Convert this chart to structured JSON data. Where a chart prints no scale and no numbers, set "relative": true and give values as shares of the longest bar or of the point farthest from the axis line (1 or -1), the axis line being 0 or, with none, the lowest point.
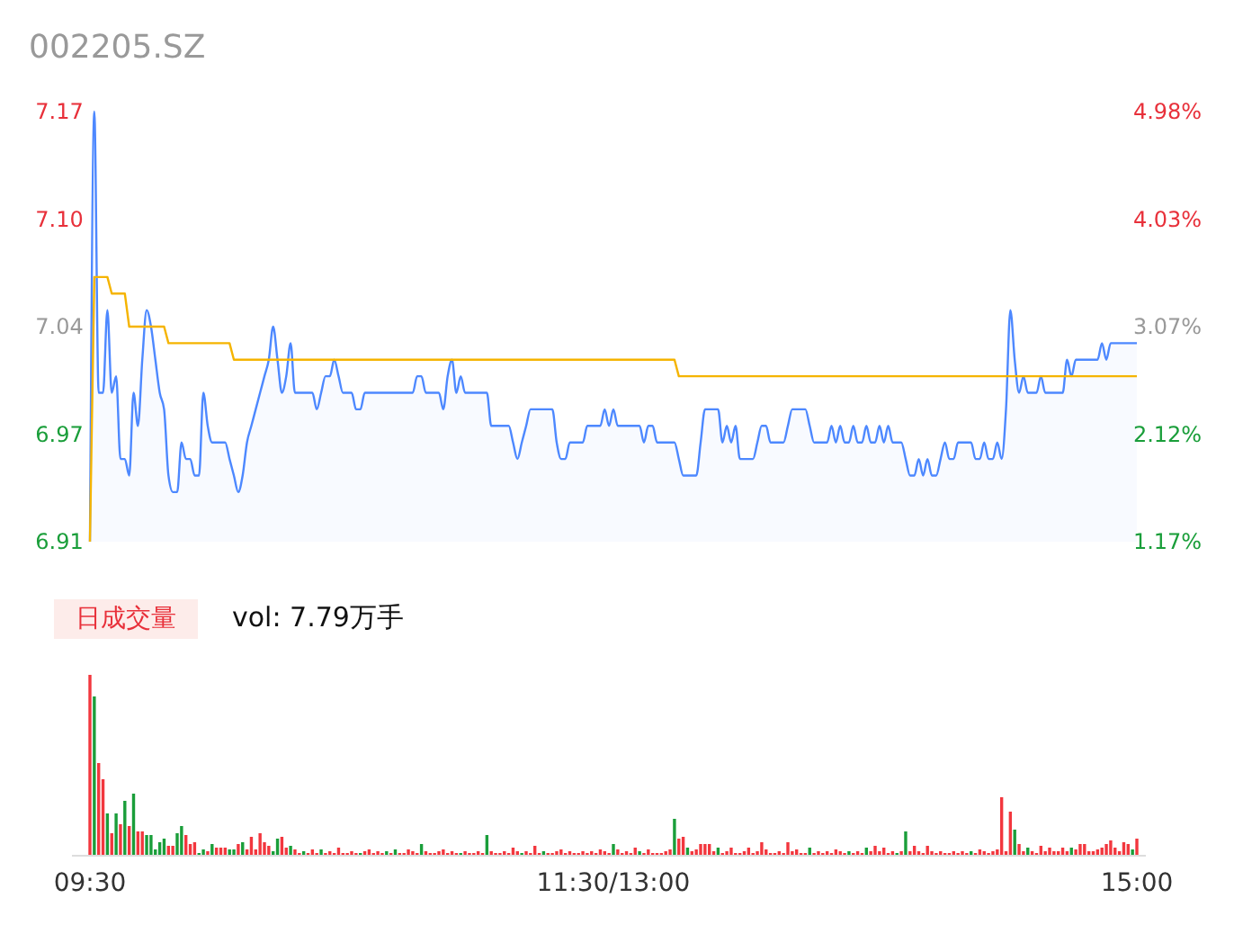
{
  "chart_data": [
    {
      "type": "line",
      "title": "002205.SZ",
      "categories": [
        null,
        null,
        null,
        null,
        null,
        null,
        null,
        null,
        null,
        null,
        null,
        null,
        null,
        null,
        null,
        null,
        null,
        null,
        null,
        null,
        null,
        null,
        null,
        null,
        null,
        null,
        null,
        null,
        null,
        null,
        null,
        null,
        null,
        null,
        null,
        null,
        null,
        null,
        null,
        null,
        null,
        null,
        null,
        null,
        null,
        null,
        null,
        null,
        null,
        null,
        null,
        null,
        null,
        null,
        null,
        null,
        null,
        null,
        null,
        null,
        null,
        null,
        null,
        null,
        null,
        null,
        null,
        null,
        null,
        null,
        null,
        null,
        null,
        null,
        null,
        null,
        null,
        null,
        null,
        null,
        null,
        null,
        null,
        null,
        null,
        null,
        null,
        null,
        null,
        null,
        null,
        null,
        null,
        null,
        null,
        null,
        null,
        null,
        null,
        null,
        null,
        null,
        null,
        null,
        null,
        null,
        null,
        null,
        null,
        null,
        null,
        null,
        null,
        null,
        null,
        null,
        null,
        null,
        null,
        null,
        null,
        null,
        null,
        null,
        null,
        null,
        null,
        null,
        null,
        null,
        null,
        null,
        null,
        null,
        null,
        null,
        null,
        null,
        null,
        null,
        null,
        null,
        null,
        null,
        null,
        null,
        null,
        null,
        null,
        null,
        null,
        null,
        null,
        null,
        null,
        null,
        null,
        null,
        null,
        null,
        null,
        null,
        null,
        null,
        null,
        null,
        null,
        null,
        null,
        null,
        null,
        null,
        null,
        null,
        null,
        null,
        null,
        null,
        null,
        null,
        null,
        null,
        null,
        null,
        null,
        null,
        null,
        null,
        null,
        null,
        null,
        null,
        null,
        null,
        null,
        null,
        null,
        null,
        null,
        null,
        null,
        null,
        null,
        null,
        null,
        null,
        null,
        null,
        null,
        null,
        null,
        null,
        null,
        null,
        null,
        null,
        null,
        null,
        null,
        null,
        null,
        null,
        null,
        null,
        null,
        null,
        null,
        null,
        null,
        null,
        null,
        null,
        null,
        null,
        null,
        null,
        null,
        null,
        null,
        null,
        null
      ],
      "ylim": [
        6.91,
        7.17
      ],
      "yticks": [
        6.91,
        {
          "value": 6.975,
          "label": "6.97"
        },
        7.04,
        {
          "value": 7.105,
          "label": "7.10"
        },
        7.17
      ],
      "y2lim": [
        1.17,
        4.98
      ],
      "y2ticks": [
        {
          "value": 1.17,
          "label": "1.17%"
        },
        {
          "value": 2.1225,
          "label": "2.12%"
        },
        {
          "value": 3.075,
          "label": "3.07%"
        },
        {
          "value": 4.0275,
          "label": "4.03%"
        },
        {
          "value": 4.98,
          "label": "4.98%"
        }
      ],
      "tick_labels": "y",
      "series": [
        {
          "type": "area",
          "color": "#4d88ff",
          "values": [
            6.91,
            7.17,
            7.0,
            7.0,
            7.05,
            7.0,
            7.01,
            6.96,
            6.96,
            6.95,
            7.0,
            6.98,
            7.02,
            7.05,
            7.04,
            7.02,
            7.0,
            6.99,
            6.95,
            6.94,
            6.94,
            6.97,
            6.96,
            6.96,
            6.95,
            6.95,
            7.0,
            6.98,
            6.97,
            6.97,
            6.97,
            6.97,
            6.96,
            6.95,
            6.94,
            6.95,
            6.97,
            6.98,
            6.99,
            7.0,
            7.01,
            7.02,
            7.04,
            7.02,
            7.0,
            7.01,
            7.03,
            7.0,
            7.0,
            7.0,
            7.0,
            7.0,
            6.99,
            7.0,
            7.01,
            7.01,
            7.02,
            7.01,
            7.0,
            7.0,
            7.0,
            6.99,
            6.99,
            7.0,
            7.0,
            7.0,
            7.0,
            7.0,
            7.0,
            7.0,
            7.0,
            7.0,
            7.0,
            7.0,
            7.0,
            7.01,
            7.01,
            7.0,
            7.0,
            7.0,
            7.0,
            6.99,
            7.01,
            7.02,
            7.0,
            7.01,
            7.0,
            7.0,
            7.0,
            7.0,
            7.0,
            7.0,
            6.98,
            6.98,
            6.98,
            6.98,
            6.98,
            6.97,
            6.96,
            6.97,
            6.98,
            6.99,
            6.99,
            6.99,
            6.99,
            6.99,
            6.99,
            6.97,
            6.96,
            6.96,
            6.97,
            6.97,
            6.97,
            6.97,
            6.98,
            6.98,
            6.98,
            6.98,
            6.99,
            6.98,
            6.99,
            6.98,
            6.98,
            6.98,
            6.98,
            6.98,
            6.98,
            6.97,
            6.98,
            6.98,
            6.97,
            6.97,
            6.97,
            6.97,
            6.97,
            6.96,
            6.95,
            6.95,
            6.95,
            6.95,
            6.97,
            6.99,
            6.99,
            6.99,
            6.99,
            6.97,
            6.98,
            6.97,
            6.98,
            6.96,
            6.96,
            6.96,
            6.96,
            6.97,
            6.98,
            6.98,
            6.97,
            6.97,
            6.97,
            6.97,
            6.98,
            6.99,
            6.99,
            6.99,
            6.99,
            6.98,
            6.97,
            6.97,
            6.97,
            6.97,
            6.98,
            6.97,
            6.98,
            6.97,
            6.97,
            6.98,
            6.97,
            6.97,
            6.98,
            6.97,
            6.97,
            6.98,
            6.97,
            6.98,
            6.97,
            6.97,
            6.97,
            6.96,
            6.95,
            6.95,
            6.96,
            6.95,
            6.96,
            6.95,
            6.95,
            6.96,
            6.97,
            6.96,
            6.96,
            6.97,
            6.97,
            6.97,
            6.97,
            6.96,
            6.96,
            6.97,
            6.96,
            6.96,
            6.97,
            6.96,
            6.99,
            7.05,
            7.02,
            7.0,
            7.01,
            7.0,
            7.0,
            7.0,
            7.01,
            7.0,
            7.0,
            7.0,
            7.0,
            7.0,
            7.02,
            7.01,
            7.02,
            7.02,
            7.02,
            7.02,
            7.02,
            7.02,
            7.03,
            7.02,
            7.03,
            7.03,
            7.03,
            7.03,
            7.03,
            7.03,
            7.03
          ]
        },
        {
          "type": "line",
          "color": "#f5b400",
          "values": [
            6.91,
            7.07,
            7.07,
            7.07,
            7.07,
            7.06,
            7.06,
            7.06,
            7.06,
            7.04,
            7.04,
            7.04,
            7.04,
            7.04,
            7.04,
            7.04,
            7.04,
            7.04,
            7.03,
            7.03,
            7.03,
            7.03,
            7.03,
            7.03,
            7.03,
            7.03,
            7.03,
            7.03,
            7.03,
            7.03,
            7.03,
            7.03,
            7.03,
            7.02,
            7.02,
            7.02,
            7.02,
            7.02,
            7.02,
            7.02,
            7.02,
            7.02,
            7.02,
            7.02,
            7.02,
            7.02,
            7.02,
            7.02,
            7.02,
            7.02,
            7.02,
            7.02,
            7.02,
            7.02,
            7.02,
            7.02,
            7.02,
            7.02,
            7.02,
            7.02,
            7.02,
            7.02,
            7.02,
            7.02,
            7.02,
            7.02,
            7.02,
            7.02,
            7.02,
            7.02,
            7.02,
            7.02,
            7.02,
            7.02,
            7.02,
            7.02,
            7.02,
            7.02,
            7.02,
            7.02,
            7.02,
            7.02,
            7.02,
            7.02,
            7.02,
            7.02,
            7.02,
            7.02,
            7.02,
            7.02,
            7.02,
            7.02,
            7.02,
            7.02,
            7.02,
            7.02,
            7.02,
            7.02,
            7.02,
            7.02,
            7.02,
            7.02,
            7.02,
            7.02,
            7.02,
            7.02,
            7.02,
            7.02,
            7.02,
            7.02,
            7.02,
            7.02,
            7.02,
            7.02,
            7.02,
            7.02,
            7.02,
            7.02,
            7.02,
            7.02,
            7.02,
            7.02,
            7.02,
            7.02,
            7.02,
            7.02,
            7.02,
            7.02,
            7.02,
            7.02,
            7.02,
            7.02,
            7.02,
            7.02,
            7.02,
            7.01,
            7.01,
            7.01,
            7.01,
            7.01,
            7.01,
            7.01,
            7.01,
            7.01,
            7.01,
            7.01,
            7.01,
            7.01,
            7.01,
            7.01,
            7.01,
            7.01,
            7.01,
            7.01,
            7.01,
            7.01,
            7.01,
            7.01,
            7.01,
            7.01,
            7.01,
            7.01,
            7.01,
            7.01,
            7.01,
            7.01,
            7.01,
            7.01,
            7.01,
            7.01,
            7.01,
            7.01,
            7.01,
            7.01,
            7.01,
            7.01,
            7.01,
            7.01,
            7.01,
            7.01,
            7.01,
            7.01,
            7.01,
            7.01,
            7.01,
            7.01,
            7.01,
            7.01,
            7.01,
            7.01,
            7.01,
            7.01,
            7.01,
            7.01,
            7.01,
            7.01,
            7.01,
            7.01,
            7.01,
            7.01,
            7.01,
            7.01,
            7.01,
            7.01,
            7.01,
            7.01,
            7.01,
            7.01,
            7.01,
            7.01,
            7.01,
            7.01,
            7.01,
            7.01,
            7.01,
            7.01,
            7.01,
            7.01,
            7.01,
            7.01,
            7.01,
            7.01,
            7.01,
            7.01,
            7.01,
            7.01,
            7.01,
            7.01,
            7.01,
            7.01,
            7.01,
            7.01,
            7.01,
            7.01,
            7.01,
            7.01,
            7.01,
            7.01,
            7.01,
            7.01,
            7.01
          ]
        }
      ]
    },
    {
      "type": "bar",
      "relative": true,
      "annotations": [
        "日成交量",
        "vol: 7.79万手"
      ],
      "categories": [
        "09:30",
        null,
        null,
        null,
        null,
        null,
        null,
        null,
        null,
        null,
        null,
        null,
        null,
        null,
        null,
        null,
        null,
        null,
        null,
        null,
        null,
        null,
        null,
        null,
        null,
        null,
        null,
        null,
        null,
        null,
        null,
        null,
        null,
        null,
        null,
        null,
        null,
        null,
        null,
        null,
        null,
        null,
        null,
        null,
        null,
        null,
        null,
        null,
        null,
        null,
        null,
        null,
        null,
        null,
        null,
        null,
        null,
        null,
        null,
        null,
        null,
        null,
        null,
        null,
        null,
        null,
        null,
        null,
        null,
        null,
        null,
        null,
        null,
        null,
        null,
        null,
        null,
        null,
        null,
        null,
        null,
        null,
        null,
        null,
        null,
        null,
        null,
        null,
        null,
        null,
        null,
        null,
        null,
        null,
        null,
        null,
        null,
        null,
        null,
        null,
        null,
        null,
        null,
        null,
        null,
        null,
        null,
        null,
        null,
        null,
        null,
        null,
        null,
        null,
        null,
        null,
        null,
        null,
        null,
        null,
        "11:30/13:00",
        null,
        null,
        null,
        null,
        null,
        null,
        null,
        null,
        null,
        null,
        null,
        null,
        null,
        null,
        null,
        null,
        null,
        null,
        null,
        null,
        null,
        null,
        null,
        null,
        null,
        null,
        null,
        null,
        null,
        null,
        null,
        null,
        null,
        null,
        null,
        null,
        null,
        null,
        null,
        null,
        null,
        null,
        null,
        null,
        null,
        null,
        null,
        null,
        null,
        null,
        null,
        null,
        null,
        null,
        null,
        null,
        null,
        null,
        null,
        null,
        null,
        null,
        null,
        null,
        null,
        null,
        null,
        null,
        null,
        null,
        null,
        null,
        null,
        null,
        null,
        null,
        null,
        null,
        null,
        null,
        null,
        null,
        null,
        null,
        null,
        null,
        null,
        null,
        null,
        null,
        null,
        null,
        null,
        null,
        null,
        null,
        null,
        null,
        null,
        null,
        null,
        null,
        null,
        null,
        null,
        null,
        null,
        null,
        null,
        null,
        null,
        null,
        null,
        null,
        null,
        null,
        null,
        null,
        null,
        "15:00"
      ],
      "values": [
        1,
        0.88,
        0.51,
        0.42,
        0.23,
        0.12,
        0.23,
        0.17,
        0.3,
        0.16,
        0.34,
        0.13,
        0.13,
        0.11,
        0.11,
        0.03,
        0.07,
        0.09,
        0.05,
        0.05,
        0.12,
        0.16,
        0.11,
        0.06,
        0.07,
        0.01,
        0.03,
        0.02,
        0.06,
        0.04,
        0.04,
        0.04,
        0.03,
        0.03,
        0.06,
        0.07,
        0.03,
        0.1,
        0.03,
        0.12,
        0.07,
        0.05,
        0.02,
        0.09,
        0.1,
        0.04,
        0.05,
        0.03,
        0.01,
        0.02,
        0.01,
        0.03,
        0.01,
        0.03,
        0.01,
        0.02,
        0.01,
        0.04,
        0.01,
        0.01,
        0.02,
        0.01,
        0.01,
        0.02,
        0.03,
        0.01,
        0.02,
        0.01,
        0.02,
        0.01,
        0.03,
        0.01,
        0.01,
        0.03,
        0.02,
        0.01,
        0.06,
        0.02,
        0.01,
        0.01,
        0.02,
        0.03,
        0.01,
        0.02,
        0.01,
        0.01,
        0.02,
        0.01,
        0.01,
        0.02,
        0.01,
        0.11,
        0.02,
        0.01,
        0.01,
        0.02,
        0.01,
        0.04,
        0.02,
        0.01,
        0.02,
        0.01,
        0.05,
        0.01,
        0.02,
        0.01,
        0.01,
        0.02,
        0.03,
        0.01,
        0.02,
        0.01,
        0.01,
        0.02,
        0.01,
        0.02,
        0.01,
        0.03,
        0.02,
        0.01,
        0.06,
        0.03,
        0.01,
        0.02,
        0.01,
        0.04,
        0.02,
        0.01,
        0.03,
        0.01,
        0.01,
        0.01,
        0.02,
        0.03,
        0.2,
        0.09,
        0.1,
        0.04,
        0.02,
        0.03,
        0.06,
        0.06,
        0.06,
        0.02,
        0.04,
        0.01,
        0.02,
        0.04,
        0.01,
        0.01,
        0.02,
        0.04,
        0.01,
        0.02,
        0.07,
        0.03,
        0.01,
        0.01,
        0.02,
        0.01,
        0.07,
        0.02,
        0.03,
        0.01,
        0.01,
        0.04,
        0.01,
        0.02,
        0.01,
        0.02,
        0.01,
        0.03,
        0.02,
        0.01,
        0.02,
        0.01,
        0.02,
        0.01,
        0.04,
        0.02,
        0.05,
        0.02,
        0.04,
        0.01,
        0.02,
        0.01,
        0.02,
        0.13,
        0.02,
        0.05,
        0.02,
        0.01,
        0.05,
        0.02,
        0.01,
        0.02,
        0.01,
        0.01,
        0.02,
        0.01,
        0.02,
        0.01,
        0.02,
        0.01,
        0.03,
        0.02,
        0.01,
        0.02,
        0.03,
        0.32,
        0.02,
        0.24,
        0.14,
        0.06,
        0.02,
        0.04,
        0.02,
        0.01,
        0.05,
        0.02,
        0.04,
        0.02,
        0.02,
        0.04,
        0.02,
        0.04,
        0.03,
        0.06,
        0.06,
        0.02,
        0.02,
        0.03,
        0.04,
        0.06,
        0.08,
        0.04,
        0.02,
        0.07,
        0.06,
        0.03,
        0.09
      ],
      "colors": [
        "#f2373e",
        "#1a9e3a",
        "#f2373e",
        "#f2373e",
        "#1a9e3a",
        "#f2373e",
        "#1a9e3a",
        "#f2373e",
        "#1a9e3a",
        "#f2373e",
        "#1a9e3a",
        "#f2373e",
        "#f2373e",
        "#1a9e3a",
        "#1a9e3a",
        "#1a9e3a",
        "#1a9e3a",
        "#1a9e3a",
        "#f2373e",
        "#f2373e",
        "#1a9e3a",
        "#1a9e3a",
        "#f2373e",
        "#f2373e",
        "#f2373e",
        "#1a9e3a",
        "#1a9e3a",
        "#f2373e",
        "#1a9e3a",
        "#f2373e",
        "#f2373e",
        "#f2373e",
        "#1a9e3a",
        "#1a9e3a",
        "#f2373e",
        "#1a9e3a",
        "#f2373e",
        "#f2373e",
        "#f2373e",
        "#f2373e",
        "#f2373e",
        "#f2373e",
        "#1a9e3a",
        "#1a9e3a",
        "#f2373e",
        "#f2373e",
        "#1a9e3a",
        "#f2373e",
        "#f2373e",
        "#1a9e3a",
        "#f2373e",
        "#f2373e",
        "#f2373e",
        "#1a9e3a",
        "#f2373e",
        "#f2373e",
        "#f2373e",
        "#f2373e",
        "#f2373e",
        "#f2373e",
        "#f2373e",
        "#f2373e",
        "#1a9e3a",
        "#f2373e",
        "#f2373e",
        "#f2373e",
        "#f2373e",
        "#f2373e",
        "#1a9e3a",
        "#f2373e",
        "#1a9e3a",
        "#f2373e",
        "#f2373e",
        "#f2373e",
        "#f2373e",
        "#f2373e",
        "#1a9e3a",
        "#f2373e",
        "#f2373e",
        "#f2373e",
        "#f2373e",
        "#f2373e",
        "#f2373e",
        "#f2373e",
        "#f2373e",
        "#1a9e3a",
        "#f2373e",
        "#f2373e",
        "#f2373e",
        "#f2373e",
        "#f2373e",
        "#1a9e3a",
        "#f2373e",
        "#f2373e",
        "#f2373e",
        "#f2373e",
        "#f2373e",
        "#f2373e",
        "#f2373e",
        "#1a9e3a",
        "#f2373e",
        "#f2373e",
        "#f2373e",
        "#f2373e",
        "#1a9e3a",
        "#f2373e",
        "#f2373e",
        "#f2373e",
        "#f2373e",
        "#f2373e",
        "#f2373e",
        "#f2373e",
        "#f2373e",
        "#f2373e",
        "#f2373e",
        "#f2373e",
        "#f2373e",
        "#f2373e",
        "#f2373e",
        "#f2373e",
        "#1a9e3a",
        "#f2373e",
        "#f2373e",
        "#f2373e",
        "#f2373e",
        "#f2373e",
        "#1a9e3a",
        "#f2373e",
        "#f2373e",
        "#f2373e",
        "#f2373e",
        "#f2373e",
        "#f2373e",
        "#f2373e",
        "#1a9e3a",
        "#f2373e",
        "#f2373e",
        "#1a9e3a",
        "#f2373e",
        "#f2373e",
        "#f2373e",
        "#f2373e",
        "#f2373e",
        "#f2373e",
        "#1a9e3a",
        "#f2373e",
        "#f2373e",
        "#f2373e",
        "#f2373e",
        "#f2373e",
        "#f2373e",
        "#f2373e",
        "#f2373e",
        "#f2373e",
        "#f2373e",
        "#f2373e",
        "#f2373e",
        "#f2373e",
        "#f2373e",
        "#f2373e",
        "#f2373e",
        "#f2373e",
        "#f2373e",
        "#f2373e",
        "#f2373e",
        "#1a9e3a",
        "#f2373e",
        "#f2373e",
        "#f2373e",
        "#f2373e",
        "#f2373e",
        "#f2373e",
        "#f2373e",
        "#f2373e",
        "#1a9e3a",
        "#f2373e",
        "#f2373e",
        "#f2373e",
        "#1a9e3a",
        "#f2373e",
        "#f2373e",
        "#f2373e",
        "#f2373e",
        "#f2373e",
        "#f2373e",
        "#1a9e3a",
        "#f2373e",
        "#1a9e3a",
        "#f2373e",
        "#f2373e",
        "#f2373e",
        "#f2373e",
        "#f2373e",
        "#f2373e",
        "#f2373e",
        "#f2373e",
        "#f2373e",
        "#f2373e",
        "#f2373e",
        "#f2373e",
        "#f2373e",
        "#f2373e",
        "#1a9e3a",
        "#f2373e",
        "#f2373e",
        "#f2373e",
        "#f2373e",
        "#f2373e",
        "#f2373e",
        "#f2373e",
        "#f2373e",
        "#f2373e",
        "#1a9e3a",
        "#f2373e",
        "#f2373e",
        "#1a9e3a",
        "#f2373e",
        "#f2373e",
        "#f2373e",
        "#f2373e",
        "#f2373e",
        "#f2373e",
        "#f2373e",
        "#f2373e",
        "#f2373e",
        "#1a9e3a",
        "#f2373e",
        "#f2373e",
        "#f2373e",
        "#f2373e",
        "#f2373e",
        "#f2373e",
        "#f2373e",
        "#f2373e",
        "#f2373e",
        "#f2373e",
        "#f2373e",
        "#f2373e",
        "#f2373e",
        "#1a9e3a",
        "#f2373e"
      ]
    }
  ]
}
